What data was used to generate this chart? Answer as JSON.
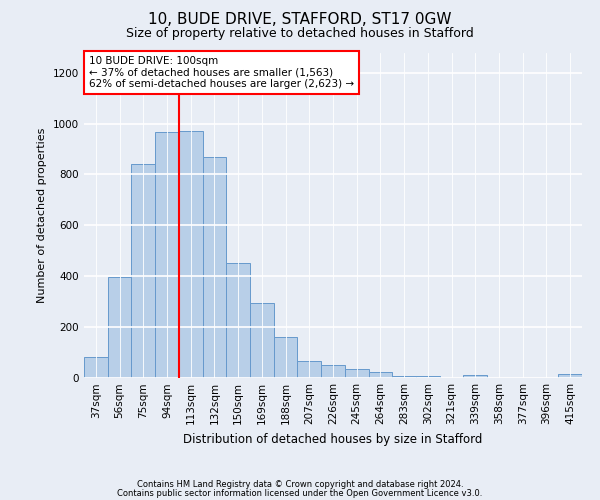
{
  "title1": "10, BUDE DRIVE, STAFFORD, ST17 0GW",
  "title2": "Size of property relative to detached houses in Stafford",
  "xlabel": "Distribution of detached houses by size in Stafford",
  "ylabel": "Number of detached properties",
  "categories": [
    "37sqm",
    "56sqm",
    "75sqm",
    "94sqm",
    "113sqm",
    "132sqm",
    "150sqm",
    "169sqm",
    "188sqm",
    "207sqm",
    "226sqm",
    "245sqm",
    "264sqm",
    "283sqm",
    "302sqm",
    "321sqm",
    "339sqm",
    "358sqm",
    "377sqm",
    "396sqm",
    "415sqm"
  ],
  "values": [
    80,
    395,
    840,
    965,
    970,
    870,
    450,
    295,
    160,
    65,
    50,
    32,
    20,
    5,
    5,
    0,
    10,
    0,
    0,
    0,
    15
  ],
  "bar_color": "#b8cfe8",
  "bar_edge_color": "#6699cc",
  "vline_color": "red",
  "vline_x_index": 3.5,
  "annotation_text": "10 BUDE DRIVE: 100sqm\n← 37% of detached houses are smaller (1,563)\n62% of semi-detached houses are larger (2,623) →",
  "annotation_box_color": "white",
  "annotation_box_edge_color": "red",
  "ylim": [
    0,
    1280
  ],
  "yticks": [
    0,
    200,
    400,
    600,
    800,
    1000,
    1200
  ],
  "footer1": "Contains HM Land Registry data © Crown copyright and database right 2024.",
  "footer2": "Contains public sector information licensed under the Open Government Licence v3.0.",
  "bg_color": "#e8edf5",
  "plot_bg_color": "#e8edf5",
  "title_fontsize": 11,
  "subtitle_fontsize": 9,
  "axis_label_fontsize": 8,
  "tick_fontsize": 7.5,
  "annotation_fontsize": 7.5,
  "xlabel_fontsize": 8.5
}
